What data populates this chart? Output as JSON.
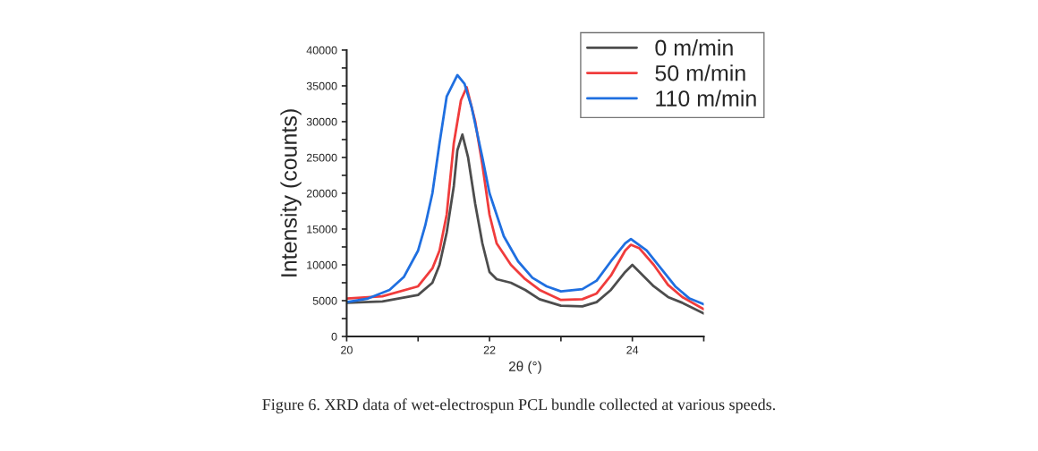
{
  "chart_data": {
    "type": "line",
    "xlabel": "2θ (°)",
    "ylabel": "Intensity (counts)",
    "xlim": [
      20,
      25
    ],
    "ylim": [
      0,
      40000
    ],
    "xticks": [
      20,
      {
        "value": 21,
        "label": null
      },
      22,
      {
        "value": 23,
        "label": null
      },
      24,
      {
        "value": 25,
        "label": null
      }
    ],
    "yticks": [
      0,
      {
        "value": 2500,
        "label": null
      },
      5000,
      {
        "value": 7500,
        "label": null
      },
      10000,
      {
        "value": 12500,
        "label": null
      },
      15000,
      {
        "value": 17500,
        "label": null
      },
      20000,
      {
        "value": 22500,
        "label": null
      },
      25000,
      {
        "value": 27500,
        "label": null
      },
      30000,
      {
        "value": 32500,
        "label": null
      },
      35000,
      {
        "value": 37500,
        "label": null
      },
      40000
    ],
    "grid": false,
    "legend": "top right",
    "line_style": "solid",
    "marker": "none",
    "annotations": [
      "Figure 6. XRD data of wet-electrospun PCL bundle collected at various speeds."
    ],
    "series": [
      {
        "name": "0 m/min",
        "color": "#4d4d4d",
        "x": [
          20,
          20.5,
          21,
          21.2,
          21.3,
          21.4,
          21.5,
          21.55,
          21.62,
          21.7,
          21.8,
          21.9,
          22.0,
          22.1,
          22.3,
          22.5,
          22.7,
          23.0,
          23.3,
          23.5,
          23.7,
          23.9,
          24.0,
          24.1,
          24.3,
          24.5,
          24.7,
          25
        ],
        "values": [
          4700,
          4900,
          5800,
          7500,
          10000,
          14500,
          21000,
          26000,
          28200,
          25000,
          18500,
          13000,
          9000,
          8000,
          7500,
          6500,
          5200,
          4300,
          4200,
          4800,
          6500,
          9000,
          10000,
          9000,
          7000,
          5500,
          4700,
          3200
        ]
      },
      {
        "name": "50 m/min",
        "color": "#f03c3c",
        "x": [
          20,
          20.5,
          21,
          21.2,
          21.3,
          21.4,
          21.5,
          21.6,
          21.68,
          21.8,
          21.9,
          22.0,
          22.1,
          22.3,
          22.5,
          22.7,
          23.0,
          23.3,
          23.5,
          23.7,
          23.9,
          23.98,
          24.1,
          24.3,
          24.5,
          24.7,
          25
        ],
        "values": [
          5300,
          5600,
          7000,
          9500,
          12000,
          17000,
          27000,
          33000,
          34800,
          30000,
          24000,
          17000,
          13000,
          10000,
          8000,
          6500,
          5100,
          5200,
          6000,
          8500,
          12000,
          12800,
          12300,
          10000,
          7200,
          5500,
          3800
        ]
      },
      {
        "name": "110 m/min",
        "color": "#1f6fe0",
        "x": [
          20,
          20.3,
          20.6,
          20.8,
          21.0,
          21.1,
          21.2,
          21.3,
          21.4,
          21.55,
          21.65,
          21.75,
          21.9,
          22.0,
          22.2,
          22.4,
          22.6,
          22.8,
          23.0,
          23.3,
          23.5,
          23.7,
          23.9,
          23.98,
          24.2,
          24.4,
          24.6,
          24.8,
          25
        ],
        "values": [
          4800,
          5300,
          6500,
          8300,
          12000,
          15500,
          20000,
          27000,
          33500,
          36500,
          35300,
          32000,
          25000,
          20000,
          14000,
          10500,
          8200,
          7000,
          6300,
          6600,
          7800,
          10500,
          13000,
          13600,
          12000,
          9500,
          7000,
          5300,
          4500
        ]
      }
    ]
  }
}
